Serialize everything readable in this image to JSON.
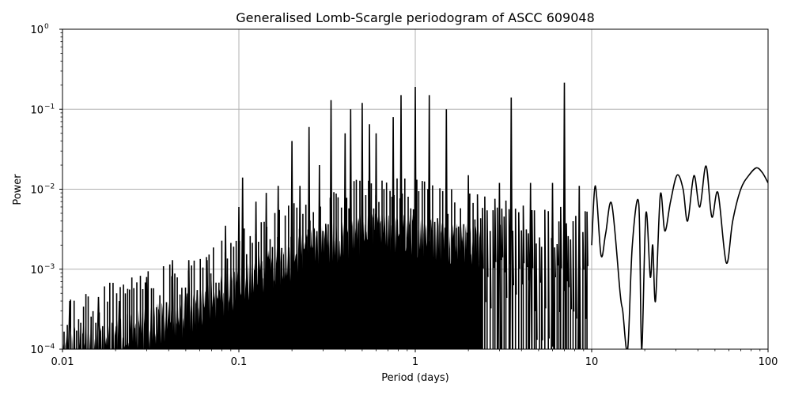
{
  "chart_data": {
    "type": "line",
    "title": "Generalised Lomb-Scargle periodogram of ASCC 609048",
    "xlabel": "Period (days)",
    "ylabel": "Power",
    "xscale": "log",
    "yscale": "log",
    "xlim": [
      0.01,
      100
    ],
    "ylim": [
      0.0001,
      1
    ],
    "grid": true,
    "legend": null,
    "x_ticks": [
      {
        "value": 0.01,
        "label": "0.01"
      },
      {
        "value": 0.1,
        "label": "0.1"
      },
      {
        "value": 1,
        "label": "1"
      },
      {
        "value": 10,
        "label": "10"
      },
      {
        "value": 100,
        "label": "100"
      }
    ],
    "y_ticks": [
      {
        "value": 0.0001,
        "base": "10",
        "exp": "−4"
      },
      {
        "value": 0.001,
        "base": "10",
        "exp": "−3"
      },
      {
        "value": 0.01,
        "base": "10",
        "exp": "−2"
      },
      {
        "value": 0.1,
        "base": "10",
        "exp": "−1"
      },
      {
        "value": 1,
        "base": "10",
        "exp": "0"
      }
    ],
    "line_color": "#000000",
    "grid_color": "#b0b0b0",
    "noise_floor_envelope": [
      {
        "period": 0.01,
        "power": 0.00015
      },
      {
        "period": 0.02,
        "power": 0.0002
      },
      {
        "period": 0.05,
        "power": 0.0004
      },
      {
        "period": 0.1,
        "power": 0.0009
      },
      {
        "period": 0.2,
        "power": 0.002
      },
      {
        "period": 0.3,
        "power": 0.003
      },
      {
        "period": 0.5,
        "power": 0.004
      },
      {
        "period": 1.0,
        "power": 0.004
      },
      {
        "period": 2.0,
        "power": 0.003
      },
      {
        "period": 5.0,
        "power": 0.002
      }
    ],
    "peaks": [
      {
        "period": 0.011,
        "power": 0.0004
      },
      {
        "period": 0.016,
        "power": 0.00045
      },
      {
        "period": 0.021,
        "power": 0.0004
      },
      {
        "period": 0.03,
        "power": 0.0008
      },
      {
        "period": 0.042,
        "power": 0.0013
      },
      {
        "period": 0.052,
        "power": 0.0013
      },
      {
        "period": 0.066,
        "power": 0.0013
      },
      {
        "period": 0.084,
        "power": 0.0035
      },
      {
        "period": 0.1,
        "power": 0.006
      },
      {
        "period": 0.105,
        "power": 0.014
      },
      {
        "period": 0.125,
        "power": 0.007
      },
      {
        "period": 0.143,
        "power": 0.009
      },
      {
        "period": 0.167,
        "power": 0.011
      },
      {
        "period": 0.2,
        "power": 0.04
      },
      {
        "period": 0.222,
        "power": 0.011
      },
      {
        "period": 0.25,
        "power": 0.06
      },
      {
        "period": 0.286,
        "power": 0.02
      },
      {
        "period": 0.333,
        "power": 0.13
      },
      {
        "period": 0.4,
        "power": 0.05
      },
      {
        "period": 0.43,
        "power": 0.1
      },
      {
        "period": 0.5,
        "power": 0.12
      },
      {
        "period": 0.55,
        "power": 0.065
      },
      {
        "period": 0.6,
        "power": 0.05
      },
      {
        "period": 0.75,
        "power": 0.08
      },
      {
        "period": 0.83,
        "power": 0.15
      },
      {
        "period": 1.0,
        "power": 0.19
      },
      {
        "period": 1.2,
        "power": 0.15
      },
      {
        "period": 1.5,
        "power": 0.1
      },
      {
        "period": 2.0,
        "power": 0.015
      },
      {
        "period": 3.0,
        "power": 0.012
      },
      {
        "period": 3.5,
        "power": 0.14
      },
      {
        "period": 4.5,
        "power": 0.012
      },
      {
        "period": 6.0,
        "power": 0.012
      },
      {
        "period": 7.0,
        "power": 0.215
      },
      {
        "period": 8.5,
        "power": 0.011
      },
      {
        "period": 10.5,
        "power": 0.011
      },
      {
        "period": 13.0,
        "power": 0.0065
      },
      {
        "period": 16.5,
        "power": 0.005
      },
      {
        "period": 20.0,
        "power": 0.006
      },
      {
        "period": 24.5,
        "power": 0.008
      },
      {
        "period": 30.0,
        "power": 0.015
      },
      {
        "period": 37.0,
        "power": 0.015
      },
      {
        "period": 44.0,
        "power": 0.019
      },
      {
        "period": 53.0,
        "power": 0.009
      },
      {
        "period": 85.0,
        "power": 0.018
      },
      {
        "period": 100.0,
        "power": 0.012
      }
    ],
    "smooth_tail": [
      {
        "period": 10.0,
        "power": 0.002
      },
      {
        "period": 10.5,
        "power": 0.011
      },
      {
        "period": 11.3,
        "power": 0.0015
      },
      {
        "period": 12.0,
        "power": 0.0028
      },
      {
        "period": 13.0,
        "power": 0.0065
      },
      {
        "period": 14.5,
        "power": 0.0005
      },
      {
        "period": 15.0,
        "power": 0.0003
      },
      {
        "period": 16.0,
        "power": 0.0001
      },
      {
        "period": 17.0,
        "power": 0.002
      },
      {
        "period": 18.5,
        "power": 0.0065
      },
      {
        "period": 19.2,
        "power": 0.0001
      },
      {
        "period": 20.3,
        "power": 0.005
      },
      {
        "period": 21.5,
        "power": 0.0008
      },
      {
        "period": 22.2,
        "power": 0.002
      },
      {
        "period": 23.0,
        "power": 0.0004
      },
      {
        "period": 24.5,
        "power": 0.0085
      },
      {
        "period": 26.0,
        "power": 0.003
      },
      {
        "period": 28.0,
        "power": 0.007
      },
      {
        "period": 30.5,
        "power": 0.015
      },
      {
        "period": 33.0,
        "power": 0.01
      },
      {
        "period": 35.0,
        "power": 0.004
      },
      {
        "period": 38.0,
        "power": 0.0148
      },
      {
        "period": 41.0,
        "power": 0.006
      },
      {
        "period": 44.5,
        "power": 0.0195
      },
      {
        "period": 48.0,
        "power": 0.0045
      },
      {
        "period": 52.0,
        "power": 0.009
      },
      {
        "period": 58.0,
        "power": 0.0012
      },
      {
        "period": 63.0,
        "power": 0.004
      },
      {
        "period": 70.0,
        "power": 0.01
      },
      {
        "period": 78.0,
        "power": 0.015
      },
      {
        "period": 86.0,
        "power": 0.0185
      },
      {
        "period": 93.0,
        "power": 0.016
      },
      {
        "period": 100.0,
        "power": 0.012
      }
    ]
  }
}
